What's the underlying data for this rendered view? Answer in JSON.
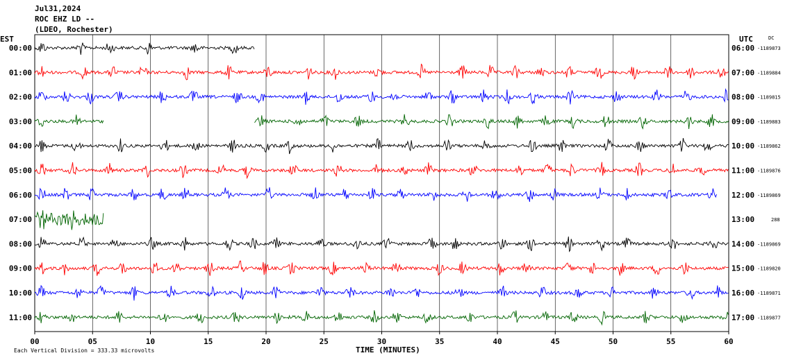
{
  "header": {
    "date": "Jul31,2024",
    "station": "ROC EHZ LD --",
    "network": "(LDEO, Rochester)"
  },
  "left_axis_label": "EST",
  "right_axis_label": "UTC",
  "dc_label": "DC",
  "footer_note": "Each Vertical Division =  333.33 microvolts",
  "chart_data": {
    "type": "line",
    "title": "ROC EHZ LD --",
    "xlabel": "TIME (MINUTES)",
    "xlim": [
      0,
      60
    ],
    "x_ticks": [
      "00",
      "05",
      "10",
      "15",
      "20",
      "25",
      "30",
      "35",
      "40",
      "45",
      "50",
      "55",
      "60"
    ],
    "x_tick_values": [
      0,
      5,
      10,
      15,
      20,
      25,
      30,
      35,
      40,
      45,
      50,
      55,
      60
    ],
    "grid": true,
    "trace_colors": [
      "#000000",
      "#ff0000",
      "#0000ff",
      "#006400"
    ],
    "rows": [
      {
        "est": "00:00",
        "utc": "06:00",
        "dc": "-1189873",
        "color": "#000000",
        "start_min": 0,
        "end_min": 19
      },
      {
        "est": "01:00",
        "utc": "07:00",
        "dc": "-1189884",
        "color": "#ff0000",
        "start_min": 0,
        "end_min": 60
      },
      {
        "est": "02:00",
        "utc": "08:00",
        "dc": "-1189815",
        "color": "#0000ff",
        "start_min": 0,
        "end_min": 60
      },
      {
        "est": "03:00",
        "utc": "09:00",
        "dc": "-1189883",
        "color": "#006400",
        "start_min": 0,
        "end_min": 6,
        "start_min2": 19,
        "end_min2": 60
      },
      {
        "est": "04:00",
        "utc": "10:00",
        "dc": "-1189862",
        "color": "#000000",
        "start_min": 0,
        "end_min": 60
      },
      {
        "est": "05:00",
        "utc": "11:00",
        "dc": "-1189876",
        "color": "#ff0000",
        "start_min": 0,
        "end_min": 60
      },
      {
        "est": "06:00",
        "utc": "12:00",
        "dc": "-1189869",
        "color": "#0000ff",
        "start_min": 0,
        "end_min": 59
      },
      {
        "est": "07:00",
        "utc": "13:00",
        "dc": "288",
        "color": "#006400",
        "start_min": 0,
        "end_min": 6
      },
      {
        "est": "08:00",
        "utc": "14:00",
        "dc": "-1189869",
        "color": "#000000",
        "start_min": 0,
        "end_min": 60
      },
      {
        "est": "09:00",
        "utc": "15:00",
        "dc": "-1189820",
        "color": "#ff0000",
        "start_min": 0,
        "end_min": 60
      },
      {
        "est": "10:00",
        "utc": "16:00",
        "dc": "-1189871",
        "color": "#0000ff",
        "start_min": 0,
        "end_min": 60
      },
      {
        "est": "11:00",
        "utc": "17:00",
        "dc": "-1189877",
        "color": "#006400",
        "start_min": 0,
        "end_min": 60
      }
    ]
  }
}
